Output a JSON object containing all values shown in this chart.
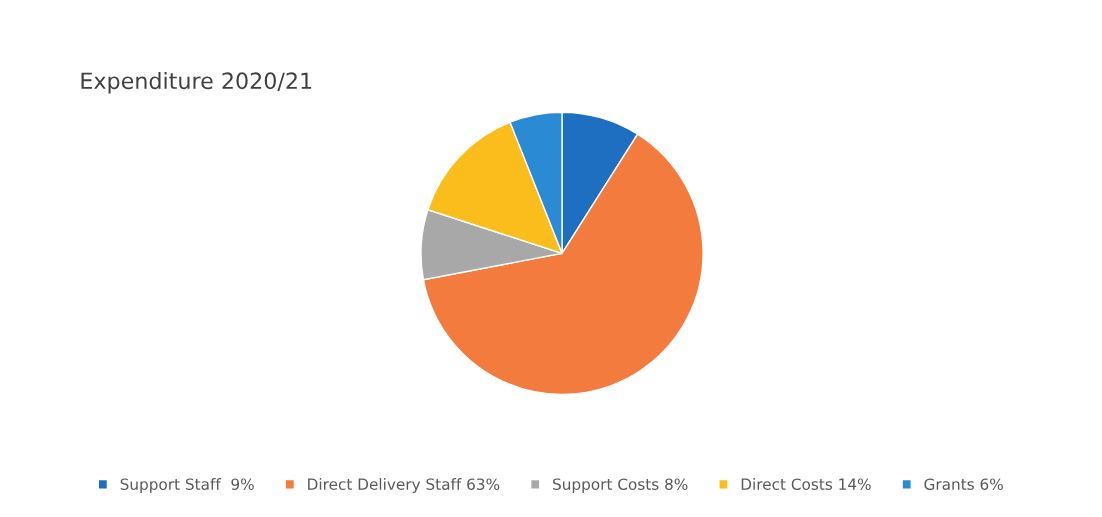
{
  "chart_data": {
    "type": "pie",
    "title": "Expenditure 2020/21",
    "categories": [
      "Support Staff  9%",
      "Direct Delivery Staff 63%",
      "Support Costs 8%",
      "Direct Costs 14%",
      "Grants 6%"
    ],
    "values": [
      9,
      63,
      8,
      14,
      6
    ],
    "colors": [
      "#1e6fc2",
      "#f47b3e",
      "#a8a8a8",
      "#fbbd1c",
      "#2a8ad4"
    ],
    "legend": "bottom"
  }
}
